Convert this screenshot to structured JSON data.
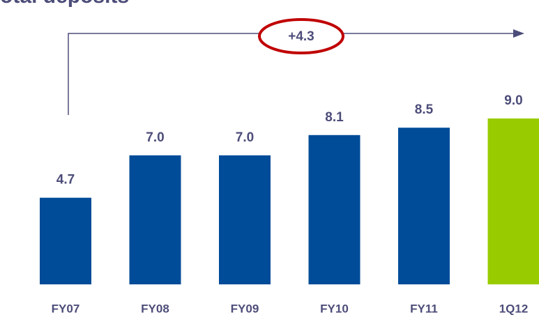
{
  "chart_data": {
    "type": "bar",
    "title": "Total deposits",
    "categories": [
      "FY07",
      "FY08",
      "FY09",
      "FY10",
      "FY11",
      "1Q12"
    ],
    "values": [
      4.7,
      7.0,
      7.0,
      8.1,
      8.5,
      9.0
    ],
    "value_labels": [
      "4.7",
      "7.0",
      "7.0",
      "8.1",
      "8.5",
      "9.0"
    ],
    "colors": [
      "#004c99",
      "#004c99",
      "#004c99",
      "#004c99",
      "#004c99",
      "#99cc00"
    ],
    "annotation": "+4.3"
  }
}
